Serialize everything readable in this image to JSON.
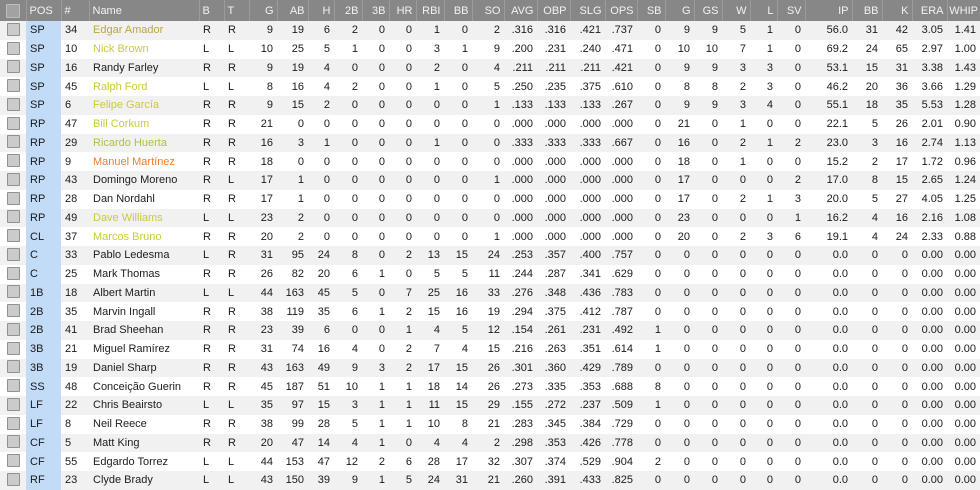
{
  "colors": {
    "default": "#1d1d1d",
    "gold": "#b9a646",
    "yellow": "#c8cb38",
    "olive": "#b2bf42",
    "orange": "#ef7e2f",
    "header_bg": "#878787",
    "pos_col_bg": "#c2dbf7",
    "stripe": "#f1f1f1"
  },
  "table": {
    "columns": [
      {
        "key": "select",
        "label": "",
        "align": "center"
      },
      {
        "key": "pos",
        "label": "POS",
        "align": "left"
      },
      {
        "key": "num",
        "label": "#",
        "align": "left"
      },
      {
        "key": "name",
        "label": "Name",
        "align": "left"
      },
      {
        "key": "b",
        "label": "B",
        "align": "left"
      },
      {
        "key": "t",
        "label": "T",
        "align": "left"
      },
      {
        "key": "g",
        "label": "G",
        "align": "right"
      },
      {
        "key": "ab",
        "label": "AB",
        "align": "right"
      },
      {
        "key": "h",
        "label": "H",
        "align": "right"
      },
      {
        "key": "b2",
        "label": "2B",
        "align": "right"
      },
      {
        "key": "b3",
        "label": "3B",
        "align": "right"
      },
      {
        "key": "hr",
        "label": "HR",
        "align": "right"
      },
      {
        "key": "rbi",
        "label": "RBI",
        "align": "right"
      },
      {
        "key": "bb",
        "label": "BB",
        "align": "right"
      },
      {
        "key": "so",
        "label": "SO",
        "align": "right"
      },
      {
        "key": "avg",
        "label": "AVG",
        "align": "right"
      },
      {
        "key": "obp",
        "label": "OBP",
        "align": "right"
      },
      {
        "key": "slg",
        "label": "SLG",
        "align": "right"
      },
      {
        "key": "ops",
        "label": "OPS",
        "align": "right"
      },
      {
        "key": "sb",
        "label": "SB",
        "align": "right"
      },
      {
        "key": "pg",
        "label": "G",
        "align": "right"
      },
      {
        "key": "pgs",
        "label": "GS",
        "align": "right"
      },
      {
        "key": "pw",
        "label": "W",
        "align": "right"
      },
      {
        "key": "pl",
        "label": "L",
        "align": "right"
      },
      {
        "key": "psv",
        "label": "SV",
        "align": "right"
      },
      {
        "key": "ip",
        "label": "IP",
        "align": "right"
      },
      {
        "key": "pbb",
        "label": "BB",
        "align": "right"
      },
      {
        "key": "pk",
        "label": "K",
        "align": "right"
      },
      {
        "key": "era",
        "label": "ERA",
        "align": "right"
      },
      {
        "key": "whip",
        "label": "WHIP",
        "align": "right"
      }
    ],
    "rows": [
      {
        "pos": "SP",
        "num": "34",
        "name": "Edgar Amador",
        "color": "gold",
        "b": "R",
        "t": "R",
        "vals": [
          "9",
          "19",
          "6",
          "2",
          "0",
          "0",
          "1",
          "0",
          "2",
          ".316",
          ".316",
          ".421",
          ".737",
          "0",
          "9",
          "9",
          "5",
          "1",
          "0",
          "56.0",
          "31",
          "42",
          "3.05",
          "1.41"
        ]
      },
      {
        "pos": "SP",
        "num": "10",
        "name": "Nick Brown",
        "color": "yellow",
        "b": "L",
        "t": "L",
        "vals": [
          "10",
          "25",
          "5",
          "1",
          "0",
          "0",
          "3",
          "1",
          "9",
          ".200",
          ".231",
          ".240",
          ".471",
          "0",
          "10",
          "10",
          "7",
          "1",
          "0",
          "69.2",
          "24",
          "65",
          "2.97",
          "1.00"
        ]
      },
      {
        "pos": "SP",
        "num": "16",
        "name": "Randy Farley",
        "color": "default",
        "b": "R",
        "t": "R",
        "vals": [
          "9",
          "19",
          "4",
          "0",
          "0",
          "0",
          "2",
          "0",
          "4",
          ".211",
          ".211",
          ".211",
          ".421",
          "0",
          "9",
          "9",
          "3",
          "3",
          "0",
          "53.1",
          "15",
          "31",
          "3.38",
          "1.43"
        ]
      },
      {
        "pos": "SP",
        "num": "45",
        "name": "Ralph Ford",
        "color": "yellow",
        "b": "L",
        "t": "L",
        "vals": [
          "8",
          "16",
          "4",
          "2",
          "0",
          "0",
          "1",
          "0",
          "5",
          ".250",
          ".235",
          ".375",
          ".610",
          "0",
          "8",
          "8",
          "2",
          "3",
          "0",
          "46.2",
          "20",
          "36",
          "3.66",
          "1.29"
        ]
      },
      {
        "pos": "SP",
        "num": "6",
        "name": "Felipe García",
        "color": "yellow",
        "b": "R",
        "t": "R",
        "vals": [
          "9",
          "15",
          "2",
          "0",
          "0",
          "0",
          "0",
          "0",
          "1",
          ".133",
          ".133",
          ".133",
          ".267",
          "0",
          "9",
          "9",
          "3",
          "4",
          "0",
          "55.1",
          "18",
          "35",
          "5.53",
          "1.28"
        ]
      },
      {
        "pos": "RP",
        "num": "47",
        "name": "Bill Corkum",
        "color": "yellow",
        "b": "R",
        "t": "R",
        "vals": [
          "21",
          "0",
          "0",
          "0",
          "0",
          "0",
          "0",
          "0",
          "0",
          ".000",
          ".000",
          ".000",
          ".000",
          "0",
          "21",
          "0",
          "1",
          "0",
          "0",
          "22.1",
          "5",
          "26",
          "2.01",
          "0.90"
        ]
      },
      {
        "pos": "RP",
        "num": "29",
        "name": "Ricardo Huerta",
        "color": "olive",
        "b": "R",
        "t": "R",
        "vals": [
          "16",
          "3",
          "1",
          "0",
          "0",
          "0",
          "1",
          "0",
          "0",
          ".333",
          ".333",
          ".333",
          ".667",
          "0",
          "16",
          "0",
          "2",
          "1",
          "2",
          "23.0",
          "3",
          "16",
          "2.74",
          "1.13"
        ]
      },
      {
        "pos": "RP",
        "num": "9",
        "name": "Manuel Martínez",
        "color": "orange",
        "b": "R",
        "t": "R",
        "vals": [
          "18",
          "0",
          "0",
          "0",
          "0",
          "0",
          "0",
          "0",
          "0",
          ".000",
          ".000",
          ".000",
          ".000",
          "0",
          "18",
          "0",
          "1",
          "0",
          "0",
          "15.2",
          "2",
          "17",
          "1.72",
          "0.96"
        ]
      },
      {
        "pos": "RP",
        "num": "43",
        "name": "Domingo Moreno",
        "color": "default",
        "b": "R",
        "t": "L",
        "vals": [
          "17",
          "1",
          "0",
          "0",
          "0",
          "0",
          "0",
          "0",
          "1",
          ".000",
          ".000",
          ".000",
          ".000",
          "0",
          "17",
          "0",
          "0",
          "0",
          "2",
          "17.0",
          "8",
          "15",
          "2.65",
          "1.24"
        ]
      },
      {
        "pos": "RP",
        "num": "28",
        "name": "Dan Nordahl",
        "color": "default",
        "b": "R",
        "t": "R",
        "vals": [
          "17",
          "1",
          "0",
          "0",
          "0",
          "0",
          "0",
          "0",
          "0",
          ".000",
          ".000",
          ".000",
          ".000",
          "0",
          "17",
          "0",
          "2",
          "1",
          "3",
          "20.0",
          "5",
          "27",
          "4.05",
          "1.25"
        ]
      },
      {
        "pos": "RP",
        "num": "49",
        "name": "Dave Williams",
        "color": "yellow",
        "b": "L",
        "t": "L",
        "vals": [
          "23",
          "2",
          "0",
          "0",
          "0",
          "0",
          "0",
          "0",
          "0",
          ".000",
          ".000",
          ".000",
          ".000",
          "0",
          "23",
          "0",
          "0",
          "0",
          "1",
          "16.2",
          "4",
          "16",
          "2.16",
          "1.08"
        ]
      },
      {
        "pos": "CL",
        "num": "37",
        "name": "Marcos Bruno",
        "color": "yellow",
        "b": "R",
        "t": "R",
        "vals": [
          "20",
          "2",
          "0",
          "0",
          "0",
          "0",
          "0",
          "0",
          "1",
          ".000",
          ".000",
          ".000",
          ".000",
          "0",
          "20",
          "0",
          "2",
          "3",
          "6",
          "19.1",
          "4",
          "24",
          "2.33",
          "0.88"
        ]
      },
      {
        "pos": "C",
        "num": "33",
        "name": "Pablo Ledesma",
        "color": "default",
        "b": "L",
        "t": "R",
        "vals": [
          "31",
          "95",
          "24",
          "8",
          "0",
          "2",
          "13",
          "15",
          "24",
          ".253",
          ".357",
          ".400",
          ".757",
          "0",
          "0",
          "0",
          "0",
          "0",
          "0",
          "0.0",
          "0",
          "0",
          "0.00",
          "0.00"
        ]
      },
      {
        "pos": "C",
        "num": "25",
        "name": "Mark Thomas",
        "color": "default",
        "b": "R",
        "t": "R",
        "vals": [
          "26",
          "82",
          "20",
          "6",
          "1",
          "0",
          "5",
          "5",
          "11",
          ".244",
          ".287",
          ".341",
          ".629",
          "0",
          "0",
          "0",
          "0",
          "0",
          "0",
          "0.0",
          "0",
          "0",
          "0.00",
          "0.00"
        ]
      },
      {
        "pos": "1B",
        "num": "18",
        "name": "Albert Martin",
        "color": "default",
        "b": "L",
        "t": "L",
        "vals": [
          "44",
          "163",
          "45",
          "5",
          "0",
          "7",
          "25",
          "16",
          "33",
          ".276",
          ".348",
          ".436",
          ".783",
          "0",
          "0",
          "0",
          "0",
          "0",
          "0",
          "0.0",
          "0",
          "0",
          "0.00",
          "0.00"
        ]
      },
      {
        "pos": "2B",
        "num": "35",
        "name": "Marvin Ingall",
        "color": "default",
        "b": "R",
        "t": "R",
        "vals": [
          "38",
          "119",
          "35",
          "6",
          "1",
          "2",
          "15",
          "16",
          "19",
          ".294",
          ".375",
          ".412",
          ".787",
          "0",
          "0",
          "0",
          "0",
          "0",
          "0",
          "0.0",
          "0",
          "0",
          "0.00",
          "0.00"
        ]
      },
      {
        "pos": "2B",
        "num": "41",
        "name": "Brad Sheehan",
        "color": "default",
        "b": "R",
        "t": "R",
        "vals": [
          "23",
          "39",
          "6",
          "0",
          "0",
          "1",
          "4",
          "5",
          "12",
          ".154",
          ".261",
          ".231",
          ".492",
          "1",
          "0",
          "0",
          "0",
          "0",
          "0",
          "0.0",
          "0",
          "0",
          "0.00",
          "0.00"
        ]
      },
      {
        "pos": "3B",
        "num": "21",
        "name": "Miguel Ramírez",
        "color": "default",
        "b": "R",
        "t": "R",
        "vals": [
          "31",
          "74",
          "16",
          "4",
          "0",
          "2",
          "7",
          "4",
          "15",
          ".216",
          ".263",
          ".351",
          ".614",
          "1",
          "0",
          "0",
          "0",
          "0",
          "0",
          "0.0",
          "0",
          "0",
          "0.00",
          "0.00"
        ]
      },
      {
        "pos": "3B",
        "num": "19",
        "name": "Daniel Sharp",
        "color": "default",
        "b": "R",
        "t": "R",
        "vals": [
          "43",
          "163",
          "49",
          "9",
          "3",
          "2",
          "17",
          "15",
          "26",
          ".301",
          ".360",
          ".429",
          ".789",
          "0",
          "0",
          "0",
          "0",
          "0",
          "0",
          "0.0",
          "0",
          "0",
          "0.00",
          "0.00"
        ]
      },
      {
        "pos": "SS",
        "num": "48",
        "name": "Conceição Guerin",
        "color": "default",
        "b": "R",
        "t": "R",
        "vals": [
          "45",
          "187",
          "51",
          "10",
          "1",
          "1",
          "18",
          "14",
          "26",
          ".273",
          ".335",
          ".353",
          ".688",
          "8",
          "0",
          "0",
          "0",
          "0",
          "0",
          "0.0",
          "0",
          "0",
          "0.00",
          "0.00"
        ]
      },
      {
        "pos": "LF",
        "num": "22",
        "name": "Chris Beairsto",
        "color": "default",
        "b": "L",
        "t": "L",
        "vals": [
          "35",
          "97",
          "15",
          "3",
          "1",
          "1",
          "11",
          "15",
          "29",
          ".155",
          ".272",
          ".237",
          ".509",
          "1",
          "0",
          "0",
          "0",
          "0",
          "0",
          "0.0",
          "0",
          "0",
          "0.00",
          "0.00"
        ]
      },
      {
        "pos": "LF",
        "num": "8",
        "name": "Neil Reece",
        "color": "default",
        "b": "R",
        "t": "R",
        "vals": [
          "38",
          "99",
          "28",
          "5",
          "1",
          "1",
          "10",
          "8",
          "21",
          ".283",
          ".345",
          ".384",
          ".729",
          "0",
          "0",
          "0",
          "0",
          "0",
          "0",
          "0.0",
          "0",
          "0",
          "0.00",
          "0.00"
        ]
      },
      {
        "pos": "CF",
        "num": "5",
        "name": "Matt King",
        "color": "default",
        "b": "R",
        "t": "R",
        "vals": [
          "20",
          "47",
          "14",
          "4",
          "1",
          "0",
          "4",
          "4",
          "2",
          ".298",
          ".353",
          ".426",
          ".778",
          "0",
          "0",
          "0",
          "0",
          "0",
          "0",
          "0.0",
          "0",
          "0",
          "0.00",
          "0.00"
        ]
      },
      {
        "pos": "CF",
        "num": "55",
        "name": "Edgardo Torrez",
        "color": "default",
        "b": "L",
        "t": "L",
        "vals": [
          "44",
          "153",
          "47",
          "12",
          "2",
          "6",
          "28",
          "17",
          "32",
          ".307",
          ".374",
          ".529",
          ".904",
          "2",
          "0",
          "0",
          "0",
          "0",
          "0",
          "0.0",
          "0",
          "0",
          "0.00",
          "0.00"
        ]
      },
      {
        "pos": "RF",
        "num": "23",
        "name": "Clyde Brady",
        "color": "default",
        "b": "L",
        "t": "L",
        "vals": [
          "43",
          "150",
          "39",
          "9",
          "1",
          "5",
          "24",
          "31",
          "21",
          ".260",
          ".391",
          ".433",
          ".825",
          "0",
          "0",
          "0",
          "0",
          "0",
          "0",
          "0.0",
          "0",
          "0",
          "0.00",
          "0.00"
        ]
      }
    ]
  }
}
